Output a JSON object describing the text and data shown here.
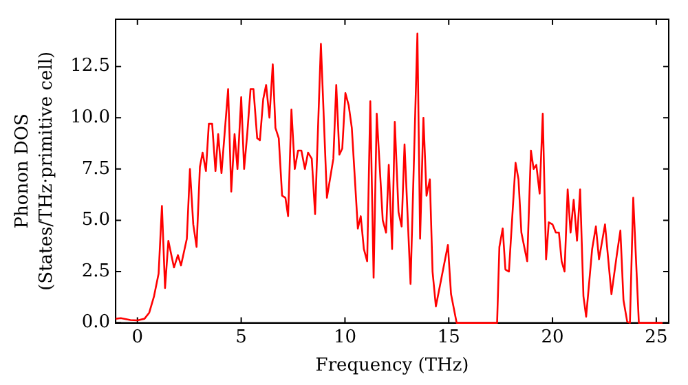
{
  "chart_data": {
    "type": "line",
    "xlabel": "Frequency (THz)",
    "ylabel": "Phonon DOS\n(States/THz·primitive cell)",
    "xlim": [
      -1.05,
      25.6
    ],
    "ylim": [
      0,
      14.8
    ],
    "xticks": [
      0,
      5,
      10,
      15,
      20,
      25
    ],
    "yticks": [
      {
        "value": 0,
        "label": "0.0"
      },
      {
        "value": 2.5,
        "label": "2.5"
      },
      {
        "value": 5,
        "label": "5.0"
      },
      {
        "value": 7.5,
        "label": "7.5"
      },
      {
        "value": 10,
        "label": "10.0"
      },
      {
        "value": 12.5,
        "label": "12.5"
      }
    ],
    "grid": false,
    "legend": false,
    "marker": "none",
    "line_style": "solid",
    "series": [
      {
        "color": "#ff0000",
        "x": [
          -1.05,
          -0.8,
          -0.34,
          0,
          0.34,
          0.57,
          0.8,
          1.02,
          1.18,
          1.33,
          1.49,
          1.76,
          1.95,
          2.1,
          2.38,
          2.53,
          2.69,
          2.85,
          3.01,
          3.14,
          3.3,
          3.44,
          3.6,
          3.76,
          3.89,
          4.05,
          4.37,
          4.52,
          4.68,
          4.82,
          5.0,
          5.14,
          5.29,
          5.45,
          5.59,
          5.77,
          5.9,
          6.06,
          6.2,
          6.36,
          6.52,
          6.65,
          6.81,
          6.97,
          7.13,
          7.26,
          7.42,
          7.58,
          7.74,
          7.9,
          8.07,
          8.22,
          8.4,
          8.56,
          8.84,
          9.13,
          9.44,
          9.58,
          9.73,
          9.87,
          10.02,
          10.18,
          10.33,
          10.62,
          10.76,
          10.91,
          11.07,
          11.22,
          11.38,
          11.53,
          11.82,
          11.98,
          12.11,
          12.27,
          12.4,
          12.58,
          12.73,
          12.87,
          13.16,
          13.49,
          13.62,
          13.78,
          13.93,
          14.09,
          14.22,
          14.38,
          14.67,
          14.96,
          15.11,
          15.38,
          17.33,
          17.44,
          17.6,
          17.73,
          17.9,
          18.22,
          18.36,
          18.5,
          18.78,
          18.96,
          19.09,
          19.22,
          19.38,
          19.53,
          19.69,
          19.82,
          20.0,
          20.16,
          20.31,
          20.44,
          20.58,
          20.73,
          20.87,
          21.02,
          21.18,
          21.33,
          21.49,
          21.62,
          21.91,
          22.09,
          22.24,
          22.53,
          22.84,
          23.11,
          23.27,
          23.42,
          23.6,
          23.73,
          23.89,
          24.16,
          25.3
        ],
        "values": [
          0.2,
          0.23,
          0.14,
          0.12,
          0.2,
          0.5,
          1.3,
          2.4,
          5.7,
          1.7,
          4.0,
          2.7,
          3.3,
          2.8,
          4.1,
          7.5,
          4.8,
          3.7,
          7.6,
          8.3,
          7.4,
          9.7,
          9.7,
          7.4,
          9.2,
          7.3,
          11.4,
          6.4,
          9.2,
          7.5,
          11.0,
          7.5,
          9.2,
          11.4,
          11.4,
          9.0,
          8.9,
          10.9,
          11.6,
          10.0,
          12.6,
          9.5,
          9.0,
          6.2,
          6.1,
          5.2,
          10.4,
          7.5,
          8.4,
          8.4,
          7.5,
          8.3,
          8.0,
          5.3,
          13.6,
          6.1,
          8.0,
          11.6,
          8.2,
          8.5,
          11.2,
          10.6,
          9.5,
          4.6,
          5.2,
          3.6,
          3.0,
          10.8,
          2.2,
          10.2,
          5.0,
          4.4,
          7.7,
          3.6,
          9.8,
          5.4,
          4.7,
          8.7,
          1.9,
          14.1,
          4.1,
          10.0,
          6.2,
          7.0,
          2.5,
          0.8,
          2.3,
          3.8,
          1.4,
          0,
          0,
          3.7,
          4.6,
          2.6,
          2.5,
          7.8,
          7.0,
          4.4,
          3.0,
          8.4,
          7.5,
          7.7,
          6.3,
          10.2,
          3.1,
          4.9,
          4.8,
          4.4,
          4.4,
          3.0,
          2.5,
          6.5,
          4.4,
          6.0,
          4.0,
          6.5,
          1.3,
          0.3,
          3.6,
          4.7,
          3.1,
          4.8,
          1.4,
          3.4,
          4.5,
          1.1,
          0.05,
          0,
          6.1,
          0,
          0
        ]
      }
    ]
  }
}
